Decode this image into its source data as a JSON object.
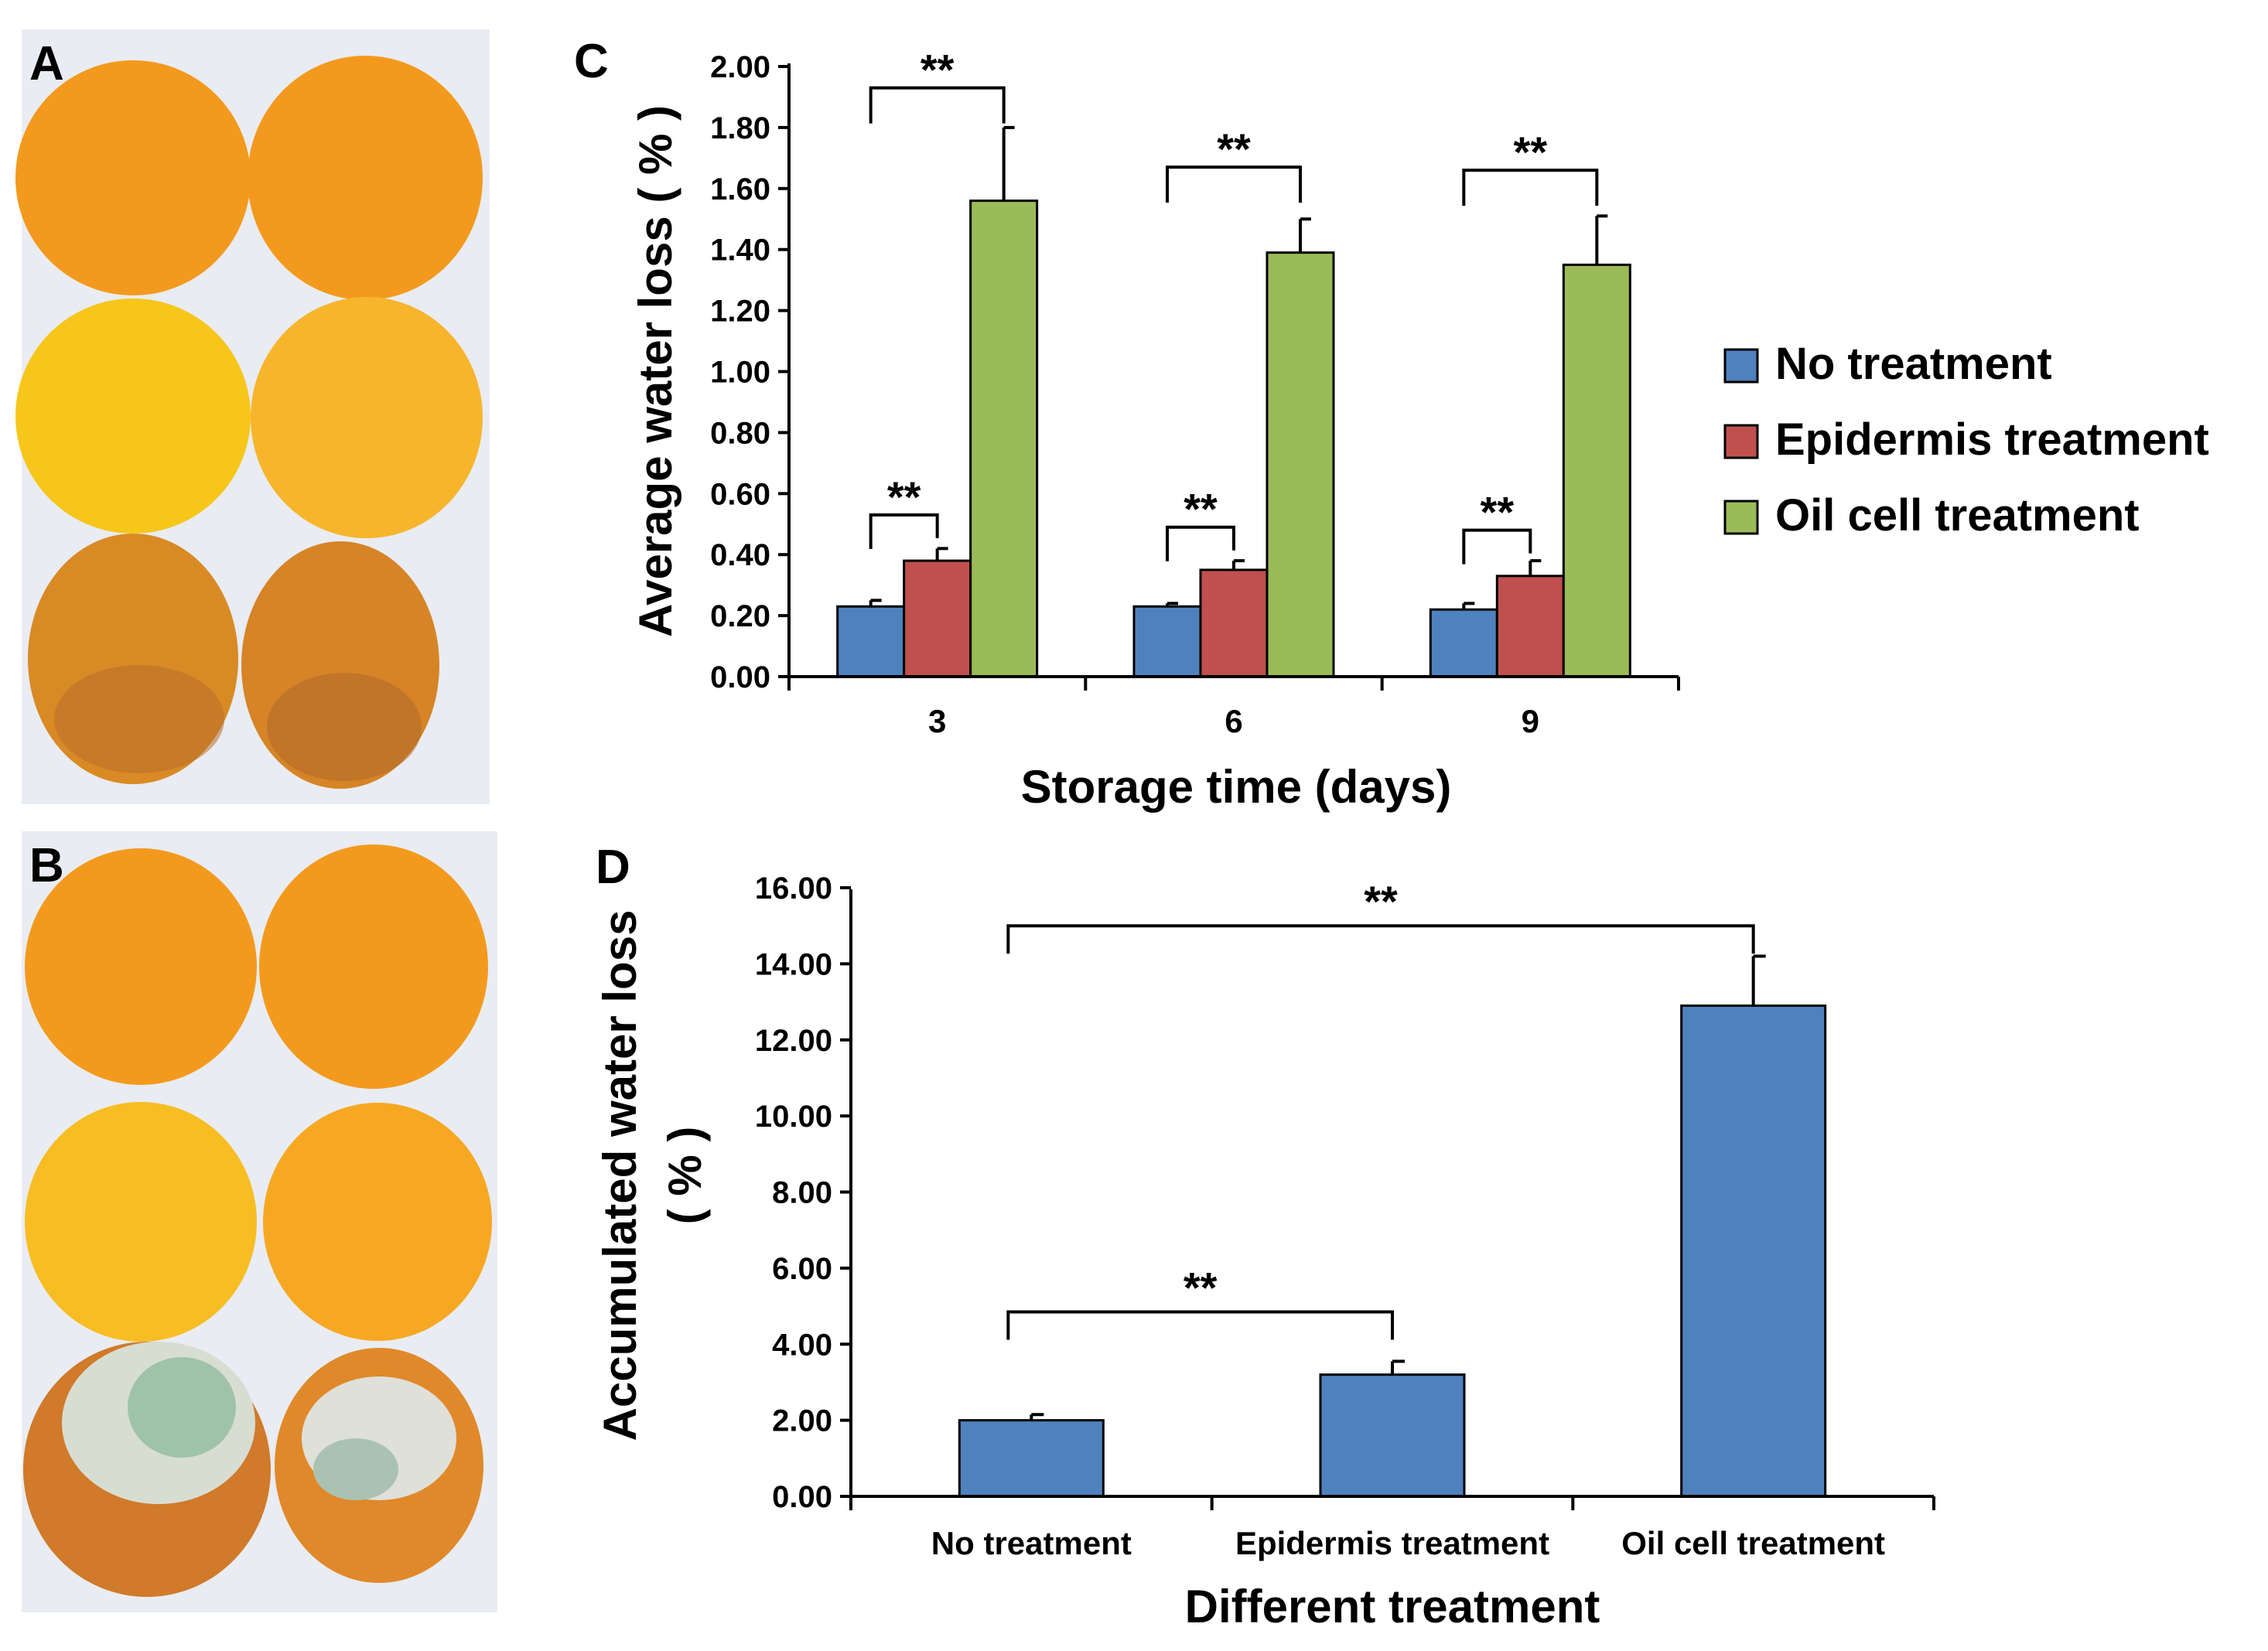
{
  "panels": {
    "A": "A",
    "B": "B",
    "C": "C",
    "D": "D"
  },
  "colors": {
    "no_treatment": "#4f81bd",
    "epidermis": "#c0504d",
    "oil_cell": "#9bbb59",
    "orange": "#f39a1e",
    "orange_light": "#f7b52c",
    "lemon": "#f6c61b",
    "mold": "#d8ddd2",
    "mold_green": "#9fc3a8",
    "photo_bg": "#e9ecf2"
  },
  "chart_data": [
    {
      "type": "bar",
      "panel": "C",
      "categories": [
        "3",
        "6",
        "9"
      ],
      "series": [
        {
          "name": "No treatment",
          "values": [
            0.23,
            0.23,
            0.22
          ],
          "errors": [
            0.02,
            0.01,
            0.02
          ]
        },
        {
          "name": "Epidermis treatment",
          "values": [
            0.38,
            0.35,
            0.33
          ],
          "errors": [
            0.04,
            0.03,
            0.05
          ]
        },
        {
          "name": "Oil cell treatment",
          "values": [
            1.56,
            1.39,
            1.35
          ],
          "errors": [
            0.24,
            0.11,
            0.16
          ]
        }
      ],
      "xlabel": "Storage time (days)",
      "ylabel": "Average water loss ( % )",
      "ylim": [
        0,
        2.0
      ],
      "yticks": [
        "0.00",
        "0.20",
        "0.40",
        "0.60",
        "0.80",
        "1.00",
        "1.20",
        "1.40",
        "1.60",
        "1.80",
        "2.00"
      ],
      "legend_position": "right",
      "significance": [
        {
          "group": 0,
          "from": 0,
          "to": 2,
          "label": "**",
          "level": 1.93
        },
        {
          "group": 0,
          "from": 0,
          "to": 1,
          "label": "**",
          "level": 0.53
        },
        {
          "group": 1,
          "from": 0,
          "to": 2,
          "label": "**",
          "level": 1.67
        },
        {
          "group": 1,
          "from": 0,
          "to": 1,
          "label": "**",
          "level": 0.49
        },
        {
          "group": 2,
          "from": 0,
          "to": 2,
          "label": "**",
          "level": 1.66
        },
        {
          "group": 2,
          "from": 0,
          "to": 1,
          "label": "**",
          "level": 0.48
        }
      ]
    },
    {
      "type": "bar",
      "panel": "D",
      "categories": [
        "No treatment",
        "Epidermis treatment",
        "Oil cell treatment"
      ],
      "values": [
        2.0,
        3.2,
        12.9
      ],
      "errors": [
        0.15,
        0.35,
        1.3
      ],
      "xlabel": "Different treatment",
      "ylabel_line1": "Accumulated water loss",
      "ylabel_line2": "( % )",
      "ylim": [
        0,
        16.0
      ],
      "yticks": [
        "0.00",
        "2.00",
        "4.00",
        "6.00",
        "8.00",
        "10.00",
        "12.00",
        "14.00",
        "16.00"
      ],
      "significance": [
        {
          "from": 0,
          "to": 2,
          "label": "**",
          "level": 15.0
        },
        {
          "from": 0,
          "to": 1,
          "label": "**",
          "level": 4.85
        }
      ]
    }
  ]
}
